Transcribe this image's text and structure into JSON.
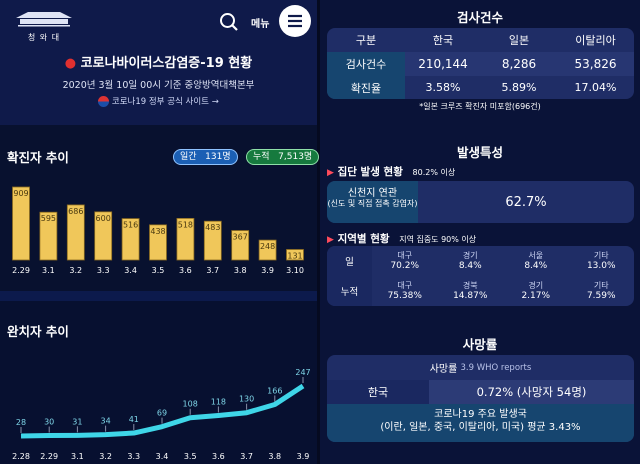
{
  "header": {
    "logo_text": "청 와 대",
    "menu_label": "메뉴",
    "title": "코로나바이러스감염증-19 현황",
    "subtitle": "2020년 3월 10일 00시 기준 중앙방역대책본부",
    "link": "코로나19 정부 공식 사이트 →"
  },
  "confirmed": {
    "title": "확진자 추이",
    "daily_label": "일간",
    "daily_value": "131명",
    "total_label": "누적",
    "total_value": "7,513명"
  },
  "recovered": {
    "title": "완치자 추이"
  },
  "chart_data": [
    {
      "type": "bar",
      "title": "확진자 추이",
      "categories": [
        "2.29",
        "3.1",
        "3.2",
        "3.3",
        "3.4",
        "3.5",
        "3.6",
        "3.7",
        "3.8",
        "3.9",
        "3.10"
      ],
      "values": [
        909,
        595,
        686,
        600,
        516,
        438,
        518,
        483,
        367,
        248,
        131
      ],
      "color": "#f0c75a"
    },
    {
      "type": "line",
      "title": "완치자 추이",
      "categories": [
        "2.28",
        "2.29",
        "3.1",
        "3.2",
        "3.3",
        "3.4",
        "3.5",
        "3.6",
        "3.7",
        "3.8",
        "3.9"
      ],
      "values": [
        28,
        30,
        31,
        34,
        41,
        69,
        108,
        118,
        130,
        166,
        247
      ],
      "color": "#3fd6e8"
    }
  ],
  "tests": {
    "title": "검사건수",
    "headers": [
      "구분",
      "한국",
      "일본",
      "이탈리아"
    ],
    "rows": [
      [
        "검사건수",
        "210,144",
        "8,286",
        "53,826"
      ],
      [
        "확진율",
        "3.58%",
        "5.89%",
        "17.04%"
      ]
    ],
    "footnote": "*일본 크루즈 확진자 미포함(696건)"
  },
  "traits": {
    "title": "발생특성",
    "cluster_label": "집단 발생 현황",
    "cluster_note": "80.2% 이상",
    "cluster_name": "신천지 연관",
    "cluster_sub": "(신도 및 직접 접촉 감염자)",
    "cluster_value": "62.7%",
    "region_label": "지역별 현황",
    "region_note": "지역 집중도 90% 이상",
    "region_rows": [
      {
        "label": "일",
        "items": [
          [
            "대구",
            "70.2%"
          ],
          [
            "경기",
            "8.4%"
          ],
          [
            "서울",
            "8.4%"
          ],
          [
            "기타",
            "13.0%"
          ]
        ]
      },
      {
        "label": "누적",
        "items": [
          [
            "대구",
            "75.38%"
          ],
          [
            "경북",
            "14.87%"
          ],
          [
            "경기",
            "2.17%"
          ],
          [
            "기타",
            "7.59%"
          ]
        ]
      }
    ]
  },
  "death": {
    "title": "사망률",
    "head": "사망률",
    "head_note": "3.9 WHO reports",
    "country": "한국",
    "value": "0.72% (사망자 54명)",
    "foot1": "코로나19 주요 발생국",
    "foot2": "(이란, 일본, 중국, 이탈리아, 미국) 평균 3.43%"
  }
}
